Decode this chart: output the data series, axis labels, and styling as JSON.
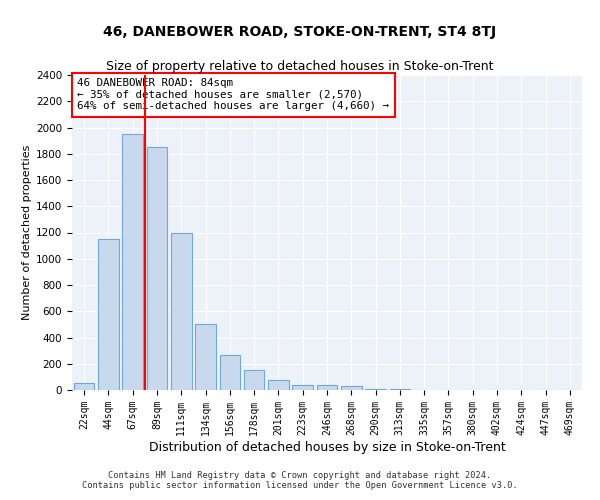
{
  "title": "46, DANEBOWER ROAD, STOKE-ON-TRENT, ST4 8TJ",
  "subtitle": "Size of property relative to detached houses in Stoke-on-Trent",
  "xlabel": "Distribution of detached houses by size in Stoke-on-Trent",
  "ylabel": "Number of detached properties",
  "categories": [
    "22sqm",
    "44sqm",
    "67sqm",
    "89sqm",
    "111sqm",
    "134sqm",
    "156sqm",
    "178sqm",
    "201sqm",
    "223sqm",
    "246sqm",
    "268sqm",
    "290sqm",
    "313sqm",
    "335sqm",
    "357sqm",
    "380sqm",
    "402sqm",
    "424sqm",
    "447sqm",
    "469sqm"
  ],
  "values": [
    50,
    1150,
    1950,
    1850,
    1200,
    500,
    270,
    150,
    80,
    40,
    40,
    30,
    10,
    10,
    0,
    0,
    0,
    0,
    0,
    0,
    0
  ],
  "bar_color": "#c9d9ed",
  "bar_edge_color": "#6fa8dc",
  "annotation_text": "46 DANEBOWER ROAD: 84sqm\n← 35% of detached houses are smaller (2,570)\n64% of semi-detached houses are larger (4,660) →",
  "vline_x": 2.5,
  "vline_color": "red",
  "annotation_box_color": "white",
  "annotation_box_edge": "red",
  "footer1": "Contains HM Land Registry data © Crown copyright and database right 2024.",
  "footer2": "Contains public sector information licensed under the Open Government Licence v3.0.",
  "ylim": [
    0,
    2400
  ],
  "yticks": [
    0,
    200,
    400,
    600,
    800,
    1000,
    1200,
    1400,
    1600,
    1800,
    2000,
    2200,
    2400
  ],
  "background_color": "#edf2f9",
  "grid_color": "white",
  "title_fontsize": 10,
  "subtitle_fontsize": 9,
  "ylabel_fontsize": 8,
  "xlabel_fontsize": 9
}
